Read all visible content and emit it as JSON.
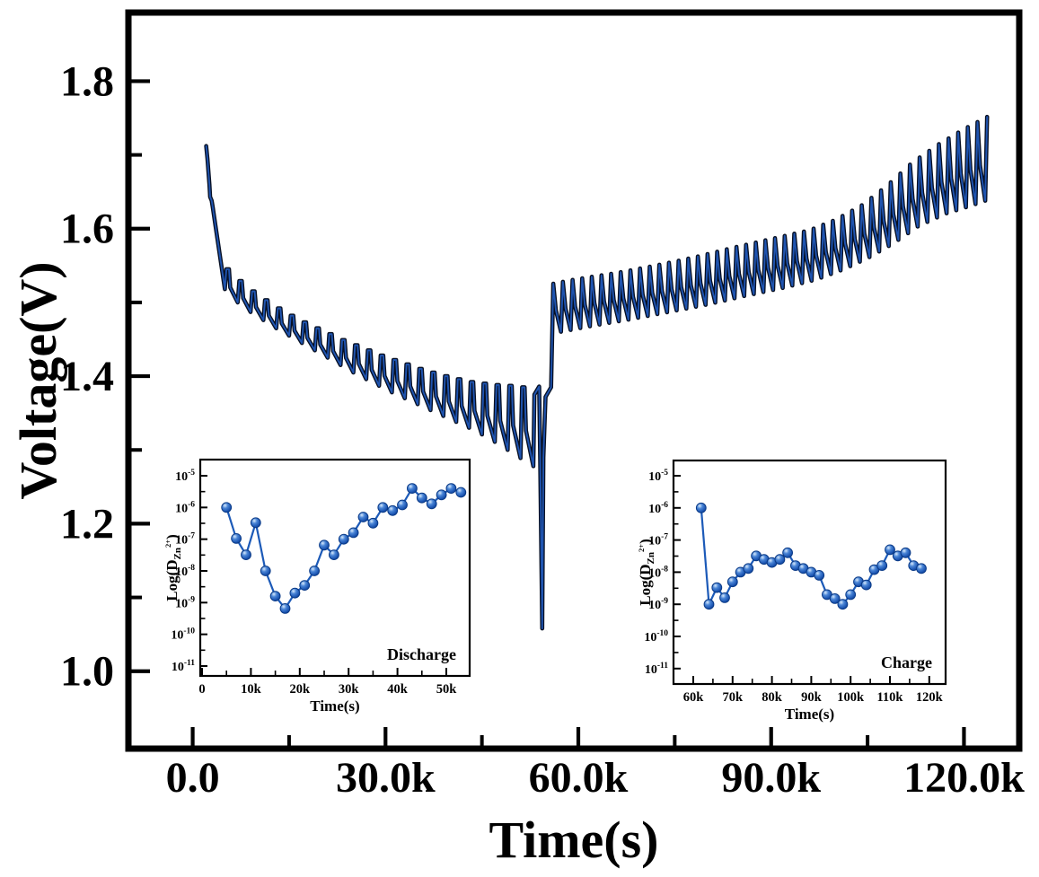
{
  "figure": {
    "background": "#ffffff"
  },
  "colors": {
    "axis": "#000000",
    "curve_outer": "#071024",
    "curve_inner": "#2159b8",
    "inset_line": "#1c5ab8",
    "marker_stroke": "#0a3a87",
    "marker_fill": "#1c55b2"
  },
  "chart_data": {
    "type": "line",
    "title": "",
    "main": {
      "xlabel": "Time(s)",
      "ylabel": "Voltage(V)",
      "xlim": [
        -10000,
        128600
      ],
      "ylim": [
        0.895,
        1.893
      ],
      "x_ticks": [
        {
          "v": 0,
          "label": "0.0"
        },
        {
          "v": 30000,
          "label": "30.0k"
        },
        {
          "v": 60000,
          "label": "60.0k"
        },
        {
          "v": 90000,
          "label": "90.0k"
        },
        {
          "v": 120000,
          "label": "120.0k"
        }
      ],
      "x_minor": [
        15000,
        45000,
        75000,
        105000
      ],
      "y_ticks": [
        {
          "v": 1.0,
          "label": "1.0"
        },
        {
          "v": 1.2,
          "label": "1.2"
        },
        {
          "v": 1.4,
          "label": "1.4"
        },
        {
          "v": 1.6,
          "label": "1.6"
        },
        {
          "v": 1.8,
          "label": "1.8"
        }
      ],
      "y_minor": [
        1.1,
        1.3,
        1.5,
        1.7
      ],
      "curve": {
        "description": "GITT voltage profile: discharge pulse train 2k-54k s dropping 1.71 to 1.27 V, deep end spike to 1.06 V, then charge pulse train 56k-124k s rising 1.53 to 1.75 V",
        "initial": [
          [
            2100,
            1.712
          ],
          [
            2300,
            1.695
          ],
          [
            2600,
            1.66
          ],
          [
            2720,
            1.643
          ],
          [
            2950,
            1.638
          ],
          [
            3100,
            1.63
          ],
          [
            5000,
            1.518
          ]
        ],
        "discharge_start": 5000,
        "discharge_period": 2000,
        "discharge_lows": [
          1.518,
          1.5,
          1.487,
          1.476,
          1.465,
          1.455,
          1.445,
          1.435,
          1.425,
          1.415,
          1.405,
          1.396,
          1.387,
          1.378,
          1.37,
          1.362,
          1.354,
          1.346,
          1.338,
          1.33,
          1.321,
          1.311,
          1.3,
          1.289,
          1.278
        ],
        "discharge_tops": [
          1.545,
          1.529,
          1.515,
          1.503,
          1.492,
          1.482,
          1.473,
          1.465,
          1.457,
          1.449,
          1.442,
          1.435,
          1.428,
          1.422,
          1.416,
          1.41,
          1.405,
          1.4,
          1.396,
          1.392,
          1.39,
          1.388,
          1.387,
          1.385
        ],
        "end_spike": [
          [
            53170,
            1.375
          ],
          [
            53900,
            1.386
          ],
          [
            54060,
            1.29
          ],
          [
            54380,
            1.058
          ],
          [
            54560,
            1.29
          ],
          [
            54900,
            1.372
          ],
          [
            55760,
            1.385
          ]
        ],
        "charge_start": 55800,
        "charge_period": 1500,
        "charge_end": 124500,
        "charge_peaks_env": [
          [
            55800,
            1.525
          ],
          [
            60000,
            1.532
          ],
          [
            66000,
            1.54
          ],
          [
            72000,
            1.55
          ],
          [
            78000,
            1.561
          ],
          [
            84000,
            1.574
          ],
          [
            90000,
            1.586
          ],
          [
            96000,
            1.598
          ],
          [
            100000,
            1.612
          ],
          [
            104000,
            1.631
          ],
          [
            108000,
            1.658
          ],
          [
            112000,
            1.69
          ],
          [
            116000,
            1.714
          ],
          [
            120000,
            1.735
          ],
          [
            123900,
            1.753
          ]
        ],
        "charge_lows_env": [
          [
            56000,
            1.458
          ],
          [
            62000,
            1.468
          ],
          [
            68000,
            1.477
          ],
          [
            74000,
            1.487
          ],
          [
            80000,
            1.497
          ],
          [
            86000,
            1.509
          ],
          [
            92000,
            1.52
          ],
          [
            97000,
            1.531
          ],
          [
            101000,
            1.544
          ],
          [
            105000,
            1.56
          ],
          [
            109000,
            1.58
          ],
          [
            113000,
            1.604
          ],
          [
            117000,
            1.62
          ],
          [
            121000,
            1.631
          ],
          [
            124000,
            1.64
          ]
        ]
      }
    },
    "insets": [
      {
        "id": "discharge",
        "corner_label": "Discharge",
        "xlabel": "Time(s)",
        "ylabel_prefix": "Log(D",
        "ylabel_sub": "Zn",
        "ylabel_sup": "2+",
        "ylabel_suffix": ")",
        "x_ticks": [
          {
            "v": 0,
            "label": "0"
          },
          {
            "v": 10000,
            "label": "10k"
          },
          {
            "v": 20000,
            "label": "20k"
          },
          {
            "v": 30000,
            "label": "30k"
          },
          {
            "v": 40000,
            "label": "40k"
          },
          {
            "v": 50000,
            "label": "50k"
          }
        ],
        "y_exponents": [
          -5,
          -6,
          -7,
          -8,
          -9,
          -10,
          -11
        ],
        "points": [
          [
            5000,
            1e-06
          ],
          [
            7000,
            1.05e-07
          ],
          [
            9000,
            3.2e-08
          ],
          [
            11000,
            3.3e-07
          ],
          [
            13000,
            1e-08
          ],
          [
            15000,
            1.6e-09
          ],
          [
            17000,
            6.5e-10
          ],
          [
            19000,
            2e-09
          ],
          [
            21000,
            3.5e-09
          ],
          [
            23000,
            1e-08
          ],
          [
            25000,
            6.5e-08
          ],
          [
            27000,
            3.2e-08
          ],
          [
            29000,
            1e-07
          ],
          [
            31000,
            1.6e-07
          ],
          [
            33000,
            5e-07
          ],
          [
            35000,
            3.2e-07
          ],
          [
            37000,
            1e-06
          ],
          [
            39000,
            8e-07
          ],
          [
            41000,
            1.2e-06
          ],
          [
            43000,
            4e-06
          ],
          [
            45000,
            2e-06
          ],
          [
            47000,
            1.3e-06
          ],
          [
            49000,
            2.5e-06
          ],
          [
            51000,
            4e-06
          ],
          [
            53000,
            3e-06
          ]
        ]
      },
      {
        "id": "charge",
        "corner_label": "Charge",
        "xlabel": "Time(s)",
        "ylabel_prefix": "Log(D",
        "ylabel_sub": "Zn",
        "ylabel_sup": "2+",
        "ylabel_suffix": ")",
        "x_ticks": [
          {
            "v": 60000,
            "label": "60k"
          },
          {
            "v": 70000,
            "label": "70k"
          },
          {
            "v": 80000,
            "label": "80k"
          },
          {
            "v": 90000,
            "label": "90k"
          },
          {
            "v": 100000,
            "label": "100k"
          },
          {
            "v": 110000,
            "label": "110k"
          },
          {
            "v": 120000,
            "label": "120k"
          }
        ],
        "y_exponents": [
          -5,
          -6,
          -7,
          -8,
          -9,
          -10,
          -11
        ],
        "points": [
          [
            62000,
            1e-06
          ],
          [
            64000,
            1e-09
          ],
          [
            66000,
            3.3e-09
          ],
          [
            68000,
            1.6e-09
          ],
          [
            70000,
            5e-09
          ],
          [
            72000,
            1e-08
          ],
          [
            74000,
            1.3e-08
          ],
          [
            76000,
            3.2e-08
          ],
          [
            78000,
            2.5e-08
          ],
          [
            80000,
            2e-08
          ],
          [
            82000,
            2.5e-08
          ],
          [
            84000,
            4e-08
          ],
          [
            86000,
            1.6e-08
          ],
          [
            88000,
            1.3e-08
          ],
          [
            90000,
            1e-08
          ],
          [
            92000,
            8e-09
          ],
          [
            94000,
            2e-09
          ],
          [
            96000,
            1.5e-09
          ],
          [
            98000,
            1e-09
          ],
          [
            100000,
            2e-09
          ],
          [
            102000,
            5e-09
          ],
          [
            104000,
            4e-09
          ],
          [
            106000,
            1.2e-08
          ],
          [
            108000,
            1.6e-08
          ],
          [
            110000,
            5e-08
          ],
          [
            112000,
            3.2e-08
          ],
          [
            114000,
            4e-08
          ],
          [
            116000,
            1.6e-08
          ],
          [
            118000,
            1.3e-08
          ]
        ]
      }
    ]
  }
}
